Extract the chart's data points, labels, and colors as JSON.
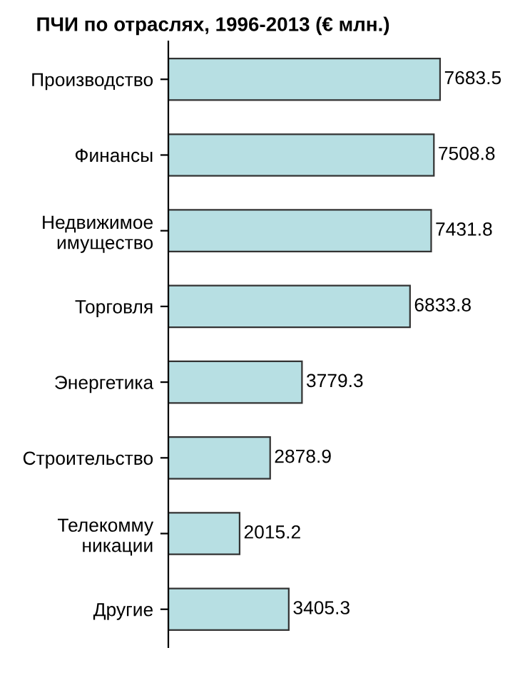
{
  "chart_data": {
    "type": "bar",
    "orientation": "horizontal",
    "title": "ПЧИ по отраслях, 1996-2013 (€ млн.)",
    "categories": [
      "Производство",
      "Финансы",
      "Недвижимое\nимущество",
      "Торговля",
      "Энергетика",
      "Строительство",
      "Телекомму\nникации",
      "Другие"
    ],
    "values": [
      7683.5,
      7508.8,
      7431.8,
      6833.8,
      3779.3,
      2878.9,
      2015.2,
      3405.3
    ],
    "color": "#b7dfe3",
    "data_labels": true,
    "grid": false,
    "legend": false,
    "tick_labels": "y"
  }
}
